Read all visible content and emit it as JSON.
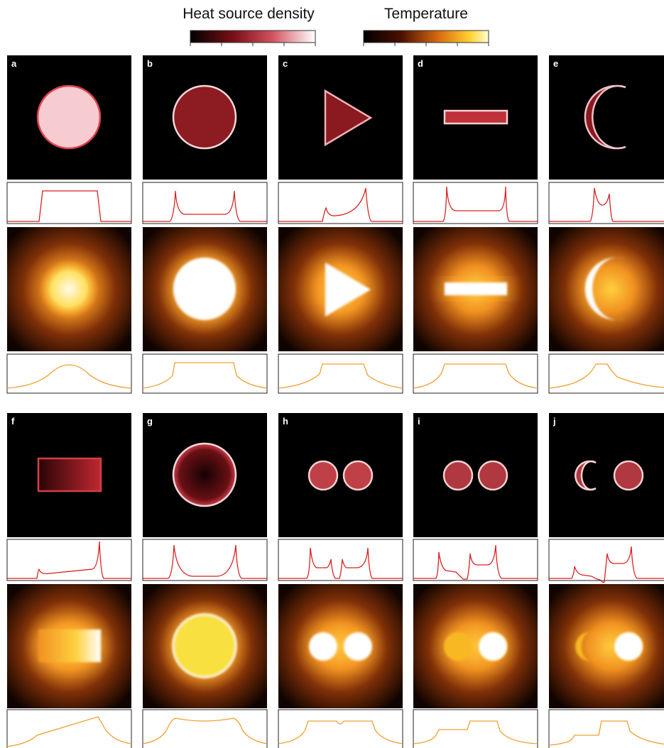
{
  "colorbars": [
    {
      "title": "Heat source density"
    },
    {
      "title": "Temperature"
    }
  ],
  "panels": [
    {
      "label": "a"
    },
    {
      "label": "b"
    },
    {
      "label": "c"
    },
    {
      "label": "d"
    },
    {
      "label": "e"
    },
    {
      "label": "f"
    },
    {
      "label": "g"
    },
    {
      "label": "h"
    },
    {
      "label": "i"
    },
    {
      "label": "j"
    }
  ]
}
